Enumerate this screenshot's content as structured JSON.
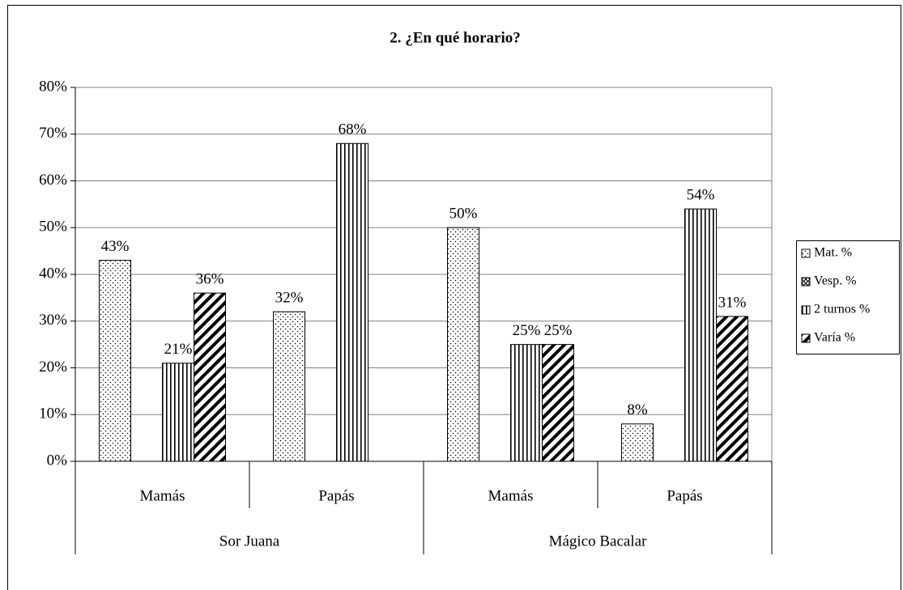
{
  "chart_data": {
    "type": "bar",
    "title": "2. ¿En qué horario?",
    "categories": [
      "Mamás",
      "Papás",
      "Mamás",
      "Papás"
    ],
    "groups": [
      "Sor Juana",
      "Mágico Bacalar"
    ],
    "series": [
      {
        "name": "Mat. %",
        "color": "#000000",
        "pattern": "dots",
        "values": [
          43,
          32,
          50,
          8
        ],
        "value_labels": [
          "43%",
          "32%",
          "50%",
          "8%"
        ]
      },
      {
        "name": "Vesp. %",
        "color": "#000000",
        "pattern": "crosshatch",
        "values": [
          null,
          null,
          null,
          null
        ],
        "value_labels": [
          null,
          null,
          null,
          null
        ]
      },
      {
        "name": "2 turnos %",
        "color": "#000000",
        "pattern": "vertical",
        "values": [
          21,
          68,
          25,
          54
        ],
        "value_labels": [
          "21%",
          "68%",
          "25%",
          "54%"
        ]
      },
      {
        "name": "Varía %",
        "color": "#000000",
        "pattern": "diagonal",
        "values": [
          36,
          null,
          25,
          31
        ],
        "value_labels": [
          "36%",
          null,
          "25%",
          "31%"
        ]
      }
    ],
    "ylim": [
      0,
      80
    ],
    "yticks": [
      {
        "value": 0,
        "label": "0%"
      },
      {
        "value": 10,
        "label": "10%"
      },
      {
        "value": 20,
        "label": "20%"
      },
      {
        "value": 30,
        "label": "30%"
      },
      {
        "value": 40,
        "label": "40%"
      },
      {
        "value": 50,
        "label": "50%"
      },
      {
        "value": 60,
        "label": "60%"
      },
      {
        "value": 70,
        "label": "70%"
      },
      {
        "value": 80,
        "label": "80%"
      }
    ],
    "grid": true,
    "legend": "right"
  }
}
